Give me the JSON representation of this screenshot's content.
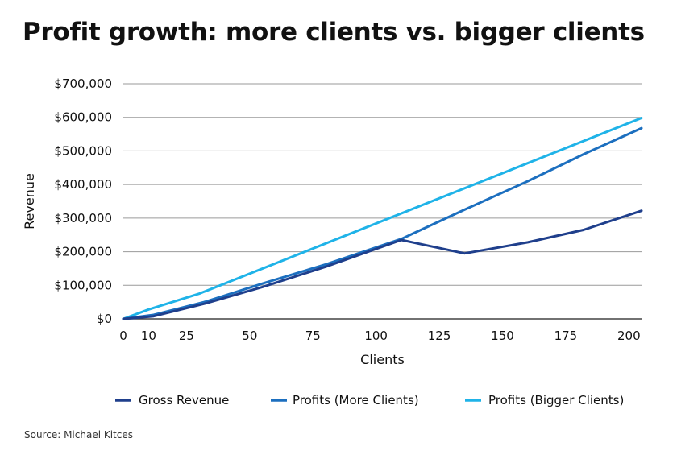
{
  "chart_data": {
    "type": "line",
    "title": "Profit growth: more clients vs. bigger clients",
    "xlabel": "Clients",
    "ylabel": "Revenue",
    "xlim": [
      0,
      205
    ],
    "ylim": [
      0,
      700000
    ],
    "xticks": [
      0,
      10,
      25,
      50,
      75,
      100,
      125,
      150,
      175,
      200
    ],
    "xtick_labels": [
      "0",
      "10",
      "25",
      "50",
      "75",
      "100",
      "125",
      "150",
      "175",
      "200"
    ],
    "yticks": [
      0,
      100000,
      200000,
      300000,
      400000,
      500000,
      600000,
      700000
    ],
    "ytick_labels": [
      "$0",
      "$100,000",
      "$200,000",
      "$300,000",
      "$400,000",
      "$500,000",
      "$600,000",
      "$700,000"
    ],
    "grid": true,
    "legend_position": "bottom",
    "series": [
      {
        "name": "Gross Revenue",
        "color": "#1f3f8c",
        "x": [
          0,
          5,
          12,
          32,
          55,
          80,
          110,
          135,
          160,
          182,
          205
        ],
        "y": [
          0,
          3000,
          8000,
          45000,
          95000,
          155000,
          235000,
          195000,
          228000,
          265000,
          322000
        ]
      },
      {
        "name": "Profits (More Clients)",
        "color": "#1c6fbf",
        "x": [
          0,
          5,
          12,
          32,
          55,
          80,
          110,
          135,
          160,
          182,
          205
        ],
        "y": [
          0,
          5000,
          12000,
          50000,
          105000,
          162000,
          238000,
          325000,
          410000,
          490000,
          568000
        ]
      },
      {
        "name": "Profits (Bigger Clients)",
        "color": "#1fb3e8",
        "x": [
          0,
          10,
          30,
          205
        ],
        "y": [
          0,
          28000,
          75000,
          598000
        ]
      }
    ]
  },
  "source": "Source: Michael Kitces"
}
